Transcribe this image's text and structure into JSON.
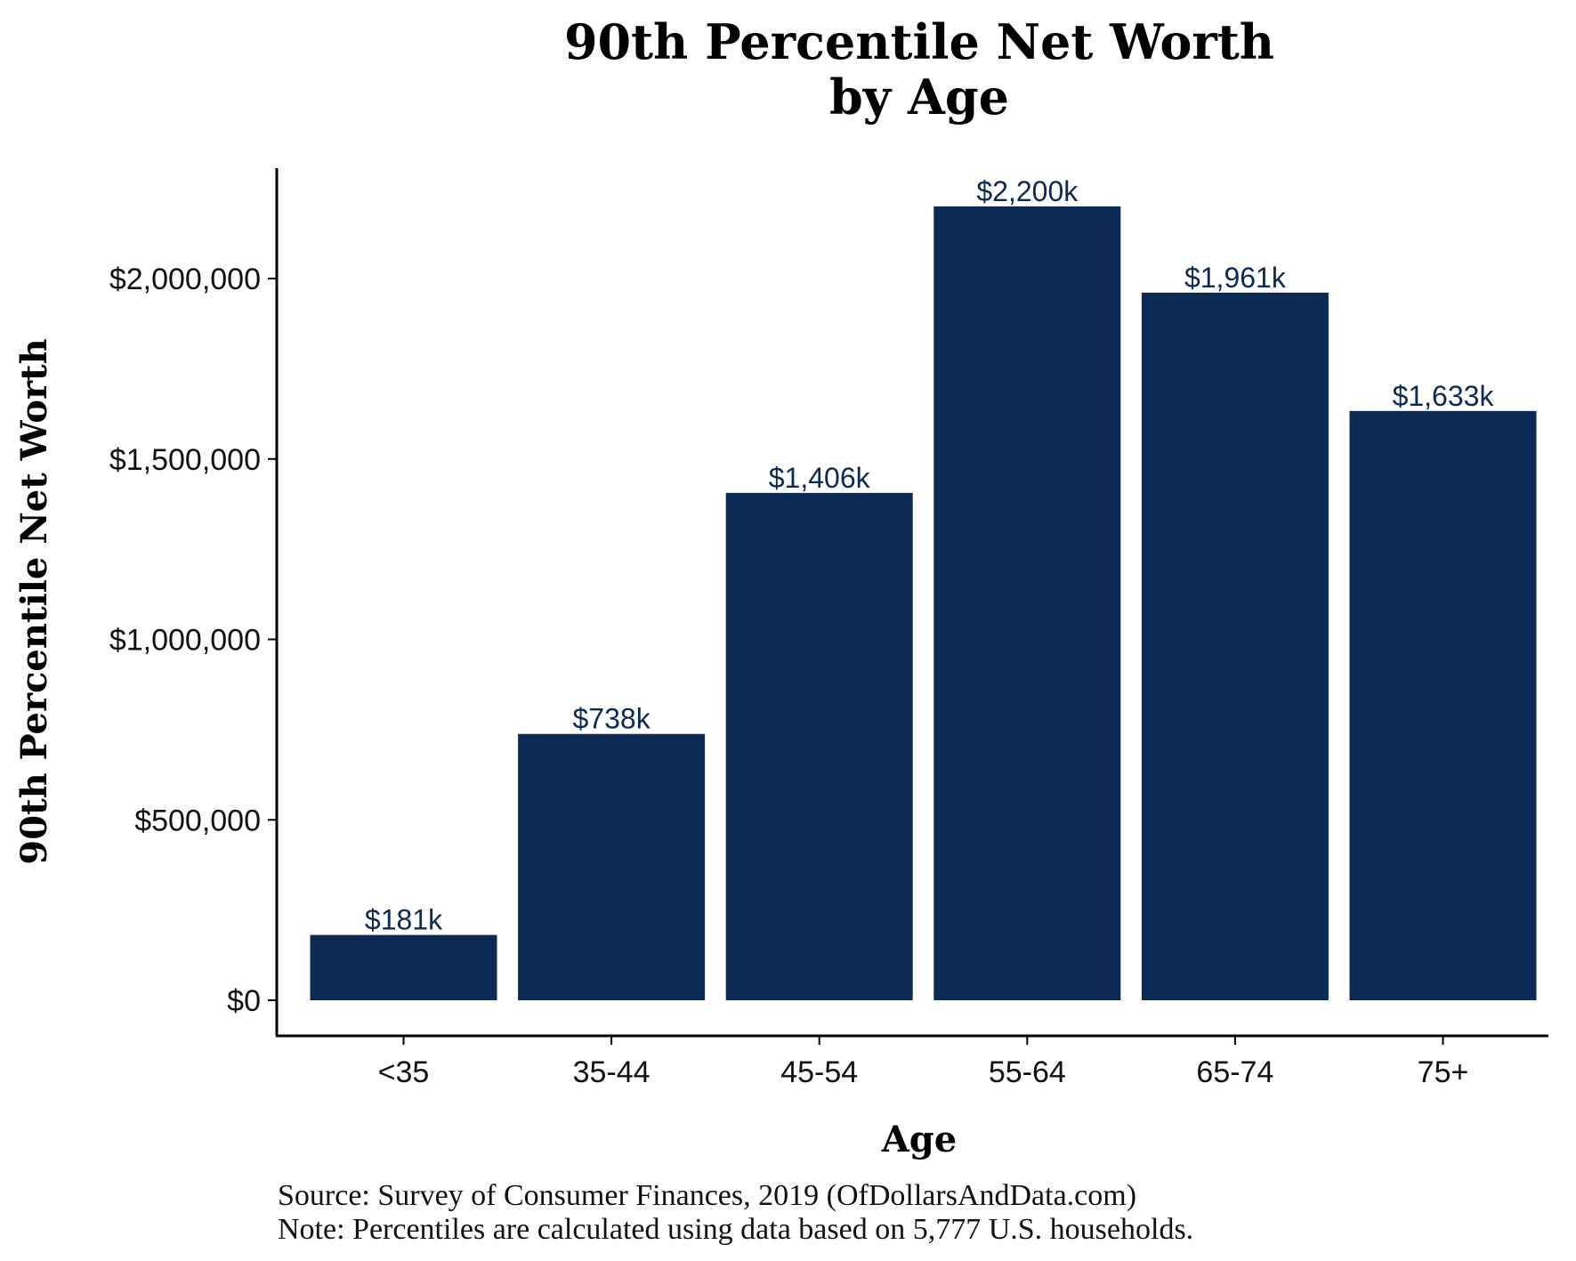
{
  "chart_data": {
    "type": "bar",
    "title": [
      "90th Percentile Net Worth",
      "by Age"
    ],
    "xlabel": "Age",
    "ylabel": "90th Percentile Net Worth",
    "categories": [
      "<35",
      "35-44",
      "45-54",
      "55-64",
      "65-74",
      "75+"
    ],
    "values": [
      181000,
      738000,
      1406000,
      2200000,
      1961000,
      1633000
    ],
    "data_labels": [
      "$181k",
      "$738k",
      "$1,406k",
      "$2,200k",
      "$1,961k",
      "$1,633k"
    ],
    "y_ticks": [
      0,
      500000,
      1000000,
      1500000,
      2000000
    ],
    "y_tick_labels": [
      "$0",
      "$500,000",
      "$1,000,000",
      "$1,500,000",
      "$2,000,000"
    ],
    "ylim": [
      0,
      2300000
    ],
    "bar_color": "#0b2a55",
    "label_color": "#0b2a55",
    "grid": false,
    "legend": "none"
  },
  "footnotes": {
    "source": "Source:  Survey of Consumer Finances, 2019 (OfDollarsAndData.com)",
    "note": "Note: Percentiles are calculated using data based on 5,777 U.S. households."
  }
}
